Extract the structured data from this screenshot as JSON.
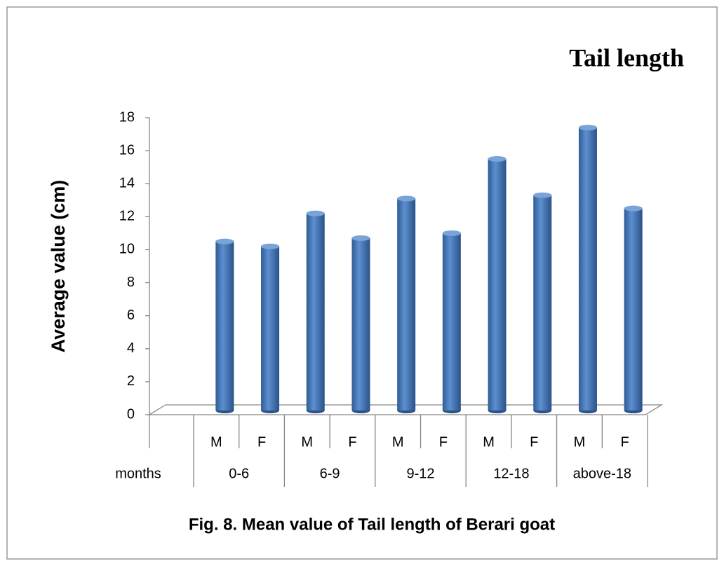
{
  "chart_data": {
    "type": "bar3d",
    "title": "Tail length",
    "y_label": "Average value (cm)",
    "x_header": "months",
    "categories": [
      "M",
      "F",
      "M",
      "F",
      "M",
      "F",
      "M",
      "F",
      "M",
      "F"
    ],
    "groups": [
      "0-6",
      "6-9",
      "9-12",
      "12-18",
      "above-18"
    ],
    "values": [
      10.5,
      10.2,
      12.2,
      10.7,
      13.1,
      11.0,
      15.5,
      13.3,
      17.4,
      12.5
    ],
    "color": "#4f81bd",
    "ylim": [
      0,
      18
    ],
    "yticks": [
      0,
      2,
      4,
      6,
      8,
      10,
      12,
      14,
      16,
      18
    ],
    "caption": "Fig.  8. Mean value of Tail length of Berari goat"
  }
}
